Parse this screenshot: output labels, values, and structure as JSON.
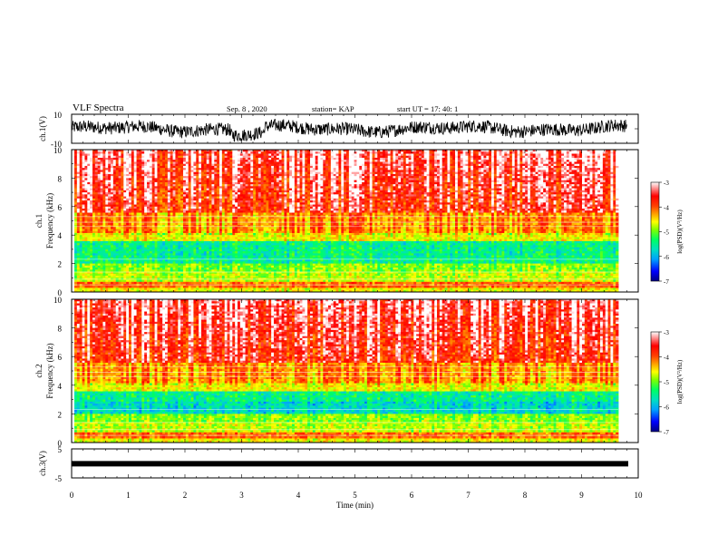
{
  "header": {
    "title": "VLF Spectra",
    "date": "Sep. 8 , 2020",
    "station": "station= KAP",
    "start_ut": "start UT =  17: 40: 1"
  },
  "colors": {
    "colorbar": [
      "#000080",
      "#0000ff",
      "#00a0ff",
      "#00e0c0",
      "#00ff60",
      "#80ff00",
      "#ffff00",
      "#ffa000",
      "#ff4000",
      "#ff0000",
      "#ffffff"
    ]
  },
  "chart_data": [
    {
      "id": "ch1-waveform",
      "type": "line",
      "ylabel": "ch.1(V)",
      "ylim": [
        -10,
        10
      ],
      "yticks": [
        "10",
        "-10"
      ],
      "xlim": [
        0,
        10
      ]
    },
    {
      "id": "ch1-spectrogram",
      "type": "heatmap",
      "ylabel_top": "ch.1",
      "ylabel": "Frequency (kHz)",
      "ylim": [
        0,
        10
      ],
      "yticks": [
        "0",
        "2",
        "4",
        "6",
        "8",
        "10"
      ],
      "xlim": [
        0,
        10
      ],
      "colorbar": {
        "label": "log(PSD)(V²/Hz)",
        "range": [
          -7,
          -3
        ],
        "ticks": [
          "-3",
          "-4",
          "-5",
          "-6",
          "-7"
        ]
      }
    },
    {
      "id": "ch2-spectrogram",
      "type": "heatmap",
      "ylabel_top": "ch.2",
      "ylabel": "Frequency (kHz)",
      "ylim": [
        0,
        10
      ],
      "yticks": [
        "0",
        "2",
        "4",
        "6",
        "8",
        "10"
      ],
      "xlim": [
        0,
        10
      ],
      "colorbar": {
        "label": "log(PSD)(V²/Hz)",
        "range": [
          -7,
          -3
        ],
        "ticks": [
          "-3",
          "-4",
          "-5",
          "-6",
          "-7"
        ]
      }
    },
    {
      "id": "ch3-waveform",
      "type": "line",
      "ylabel": "ch.3(V)",
      "ylim": [
        -5,
        5
      ],
      "yticks": [
        "5",
        "-5"
      ],
      "xlim": [
        0,
        10
      ],
      "xlabel": "Time (min)",
      "xticks": [
        "0",
        "1",
        "2",
        "3",
        "4",
        "5",
        "6",
        "7",
        "8",
        "9",
        "10"
      ]
    }
  ]
}
